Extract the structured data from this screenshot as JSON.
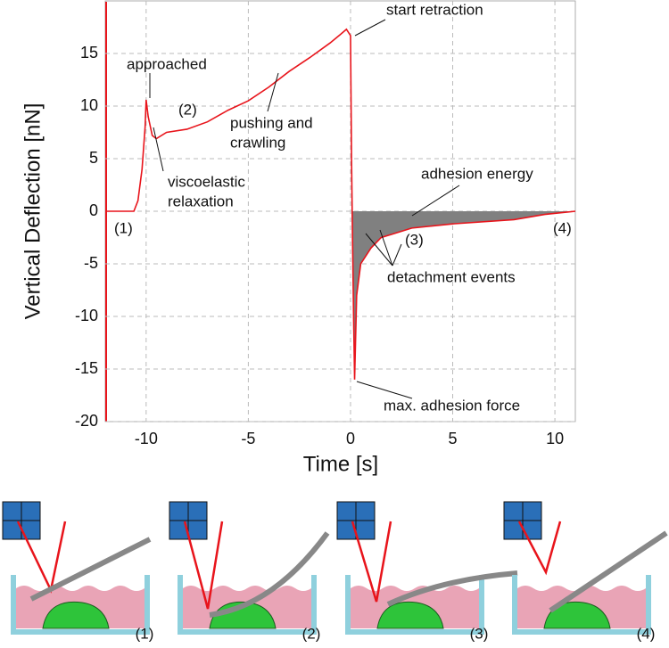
{
  "chart_data": {
    "type": "line",
    "xlabel": "Time [s]",
    "ylabel": "Vertical Deflection [nN]",
    "xlim": [
      -12,
      11
    ],
    "ylim": [
      -20,
      20
    ],
    "xticks": [
      -10,
      -5,
      0,
      5,
      10
    ],
    "yticks": [
      -20,
      -15,
      -10,
      -5,
      0,
      5,
      10,
      15
    ],
    "grid": true,
    "series": [
      {
        "color": "#e8141b",
        "x": [
          -12,
          -10.6,
          -10.4,
          -10.2,
          -10.05,
          -10,
          -9.9,
          -9.7,
          -9.5,
          -9,
          -8,
          -7,
          -6,
          -5,
          -4,
          -3,
          -2,
          -1,
          -0.5,
          -0.2,
          0,
          0.05,
          0.1,
          0.15,
          0.2,
          0.3,
          0.5,
          1,
          1.5,
          2,
          3,
          5,
          8,
          9.5,
          11
        ],
        "values": [
          0,
          0,
          1,
          4,
          8,
          10.6,
          9,
          7.2,
          6.9,
          7.5,
          7.8,
          8.5,
          9.6,
          10.5,
          11.8,
          13.3,
          14.6,
          16,
          16.8,
          17.3,
          16.7,
          5,
          -3,
          -10,
          -16,
          -8,
          -5,
          -3.5,
          -2.5,
          -2.2,
          -1.6,
          -1.2,
          -0.8,
          -0.3,
          0
        ]
      }
    ],
    "area_color": "#808080",
    "annotations": [
      {
        "text": [
          "start retraction"
        ]
      },
      {
        "text": [
          "approached"
        ]
      },
      {
        "text": [
          "(2)"
        ]
      },
      {
        "text": [
          "pushing and",
          "crawling"
        ]
      },
      {
        "text": [
          "viscoelastic",
          "relaxation"
        ]
      },
      {
        "text": [
          "adhesion energy"
        ]
      },
      {
        "text": [
          "(1)"
        ]
      },
      {
        "text": [
          "(3)"
        ]
      },
      {
        "text": [
          "(4)"
        ]
      },
      {
        "text": [
          "detachment events"
        ]
      },
      {
        "text": [
          "max. adhesion force"
        ]
      }
    ]
  },
  "panels": [
    "(1)",
    "(2)",
    "(3)",
    "(4)"
  ]
}
